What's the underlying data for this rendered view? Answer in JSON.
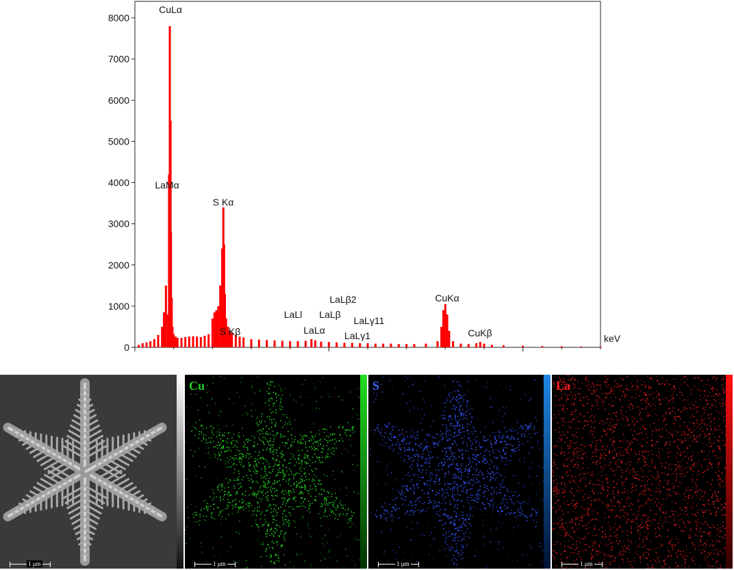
{
  "chart_data": {
    "type": "bar",
    "title": "",
    "xlabel": "",
    "ylabel": "",
    "x_unit": "keV",
    "xlim": [
      0,
      12
    ],
    "ylim": [
      0,
      8400
    ],
    "x_ticks": [
      0,
      5,
      10
    ],
    "y_ticks": [
      0,
      1000,
      2000,
      3000,
      4000,
      5000,
      6000,
      7000,
      8000
    ],
    "color": "#ff0000",
    "series": [
      {
        "x": [
          0.1,
          0.2,
          0.3,
          0.4,
          0.5,
          0.6,
          0.7,
          0.75,
          0.8,
          0.85,
          0.88,
          0.9,
          0.92,
          0.93,
          0.95,
          0.97,
          1.0,
          1.05,
          1.1,
          1.2,
          1.3,
          1.4,
          1.5,
          1.6,
          1.7,
          1.8,
          1.9,
          2.0,
          2.05,
          2.1,
          2.15,
          2.2,
          2.25,
          2.28,
          2.3,
          2.32,
          2.35,
          2.4,
          2.45,
          2.5,
          2.6,
          2.7,
          2.8,
          3.0,
          3.2,
          3.4,
          3.6,
          3.8,
          4.0,
          4.2,
          4.4,
          4.55,
          4.65,
          4.8,
          5.0,
          5.2,
          5.4,
          5.6,
          5.8,
          6.0,
          6.2,
          6.4,
          6.6,
          6.8,
          7.0,
          7.2,
          7.5,
          7.8,
          7.9,
          7.95,
          8.0,
          8.05,
          8.1,
          8.2,
          8.4,
          8.6,
          8.8,
          8.9,
          9.0,
          9.2,
          9.5,
          10.0,
          10.5,
          11.0,
          11.5,
          12.0
        ],
        "values": [
          60,
          100,
          120,
          150,
          200,
          300,
          500,
          850,
          1500,
          800,
          4200,
          7800,
          5500,
          2800,
          1200,
          500,
          320,
          260,
          230,
          230,
          250,
          260,
          270,
          260,
          250,
          280,
          320,
          700,
          850,
          900,
          1000,
          1500,
          2400,
          3400,
          2500,
          1300,
          700,
          500,
          400,
          350,
          300,
          260,
          240,
          200,
          190,
          180,
          170,
          160,
          150,
          150,
          160,
          200,
          170,
          140,
          130,
          120,
          110,
          110,
          100,
          100,
          90,
          90,
          90,
          80,
          80,
          80,
          90,
          150,
          500,
          900,
          1050,
          800,
          400,
          150,
          90,
          80,
          100,
          130,
          90,
          60,
          50,
          40,
          30,
          25,
          20,
          20
        ]
      }
    ],
    "annotations": [
      {
        "text": "CuLα",
        "x": 0.93
      },
      {
        "text": "LaMα",
        "x": 0.8
      },
      {
        "text": "S Kα",
        "x": 2.31
      },
      {
        "text": "S Kβ",
        "x": 2.46
      },
      {
        "text": "LaLl",
        "x": 4.12
      },
      {
        "text": "LaLα",
        "x": 4.65
      },
      {
        "text": "LaLβ2",
        "x": 5.38
      },
      {
        "text": "LaLβ",
        "x": 5.04
      },
      {
        "text": "LaLγ11",
        "x": 5.7
      },
      {
        "text": "LaLγ1",
        "x": 5.52
      },
      {
        "text": "CuKα",
        "x": 8.04
      },
      {
        "text": "CuKβ",
        "x": 8.9
      }
    ]
  },
  "maps": {
    "panels": [
      {
        "element": "",
        "type": "sem"
      },
      {
        "element": "Cu",
        "color": "#22cc22",
        "bar_color": "#22dd22"
      },
      {
        "element": "S",
        "color": "#3355ff",
        "bar_color": "#1e88e5"
      },
      {
        "element": "La",
        "color": "#ff2020",
        "bar_color": "#ff1010"
      }
    ],
    "scale_label": "1 μm"
  }
}
